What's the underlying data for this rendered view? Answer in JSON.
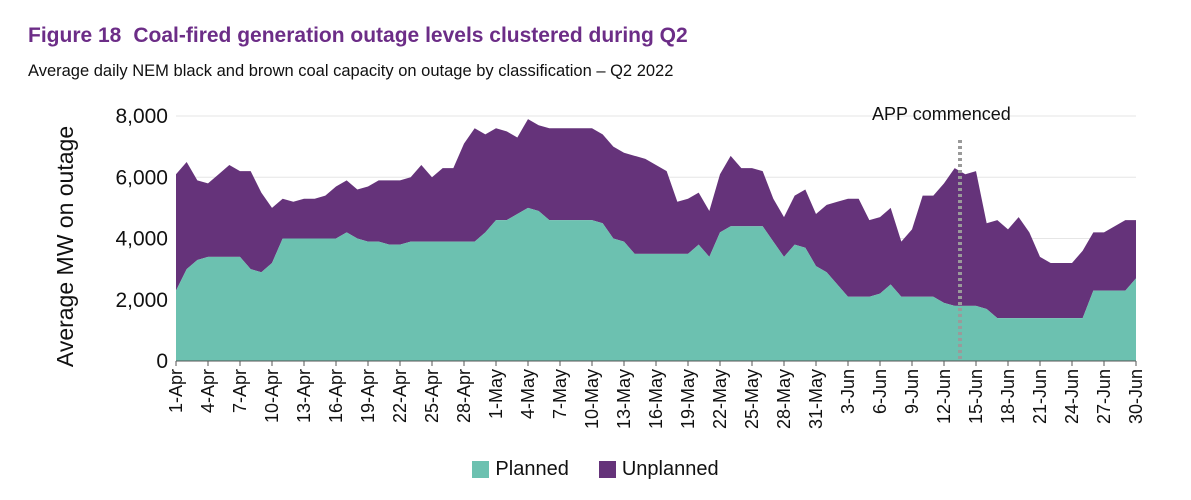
{
  "figure": {
    "number": "Figure 18",
    "title": "Coal-fired generation outage levels clustered during Q2",
    "subtitle": "Average daily NEM black and brown coal capacity on outage by classification – Q2 2022"
  },
  "colors": {
    "planned": "#6cc1b0",
    "unplanned": "#65337a",
    "grid": "#e6e6e6",
    "title": "#6c2d87"
  },
  "chart_data": {
    "type": "area",
    "stacked": true,
    "title": "Coal-fired generation outage levels clustered during Q2",
    "ylabel": "Average MW on outage",
    "xlabel": "",
    "ylim": [
      0,
      8000
    ],
    "yticks": [
      0,
      2000,
      4000,
      6000,
      8000
    ],
    "ytick_labels": [
      "0",
      "2,000",
      "4,000",
      "6,000",
      "8,000"
    ],
    "grid": "horizontal",
    "legend_position": "bottom",
    "x_tick_labels": [
      "1-Apr",
      "4-Apr",
      "7-Apr",
      "10-Apr",
      "13-Apr",
      "16-Apr",
      "19-Apr",
      "22-Apr",
      "25-Apr",
      "28-Apr",
      "1-May",
      "4-May",
      "7-May",
      "10-May",
      "13-May",
      "16-May",
      "19-May",
      "22-May",
      "25-May",
      "28-May",
      "31-May",
      "3-Jun",
      "6-Jun",
      "9-Jun",
      "12-Jun",
      "15-Jun",
      "18-Jun",
      "21-Jun",
      "24-Jun",
      "27-Jun",
      "30-Jun"
    ],
    "annotation": {
      "label": "APP commenced",
      "at_day": 13.5,
      "month": "Jun"
    },
    "days": 91,
    "series": [
      {
        "name": "Planned",
        "values": [
          2300,
          3000,
          3300,
          3400,
          3400,
          3400,
          3400,
          3000,
          2900,
          3200,
          4000,
          4000,
          4000,
          4000,
          4000,
          4000,
          4200,
          4000,
          3900,
          3900,
          3800,
          3800,
          3900,
          3900,
          3900,
          3900,
          3900,
          3900,
          3900,
          4200,
          4600,
          4600,
          4800,
          5000,
          4900,
          4600,
          4600,
          4600,
          4600,
          4600,
          4500,
          4000,
          3900,
          3500,
          3500,
          3500,
          3500,
          3500,
          3500,
          3800,
          3400,
          4200,
          4400,
          4400,
          4400,
          4400,
          3900,
          3400,
          3800,
          3700,
          3100,
          2900,
          2500,
          2100,
          2100,
          2100,
          2200,
          2500,
          2100,
          2100,
          2100,
          2100,
          1900,
          1800,
          1800,
          1800,
          1700,
          1400,
          1400,
          1400,
          1400,
          1400,
          1400,
          1400,
          1400,
          1400,
          2300,
          2300,
          2300,
          2300,
          2700
        ]
      },
      {
        "name": "Unplanned",
        "values": [
          3800,
          3500,
          2600,
          2400,
          2700,
          3000,
          2800,
          3200,
          2600,
          1800,
          1300,
          1200,
          1300,
          1300,
          1400,
          1700,
          1700,
          1600,
          1800,
          2000,
          2100,
          2100,
          2100,
          2500,
          2100,
          2400,
          2400,
          3200,
          3700,
          3200,
          3000,
          2900,
          2500,
          2900,
          2800,
          3000,
          3000,
          3000,
          3000,
          3000,
          2900,
          3000,
          2900,
          3200,
          3100,
          2900,
          2700,
          1700,
          1800,
          1700,
          1500,
          1900,
          2300,
          1900,
          1900,
          1800,
          1400,
          1300,
          1600,
          1900,
          1700,
          2200,
          2700,
          3200,
          3200,
          2500,
          2500,
          2500,
          1800,
          2200,
          3300,
          3300,
          3900,
          4500,
          4300,
          4400,
          2800,
          3200,
          2900,
          3300,
          2800,
          2000,
          1800,
          1800,
          1800,
          2200,
          1900,
          1900,
          2100,
          2300,
          1900
        ]
      }
    ]
  }
}
